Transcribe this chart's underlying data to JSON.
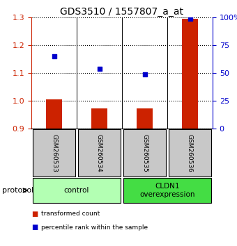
{
  "title": "GDS3510 / 1557807_a_at",
  "samples": [
    "GSM260533",
    "GSM260534",
    "GSM260535",
    "GSM260536"
  ],
  "bar_values": [
    1.005,
    0.972,
    0.972,
    1.295
  ],
  "bar_baseline": 0.9,
  "scatter_percentile": [
    65,
    54,
    49,
    99
  ],
  "left_ylim": [
    0.9,
    1.3
  ],
  "right_ylim": [
    0,
    100
  ],
  "left_yticks": [
    0.9,
    1.0,
    1.1,
    1.2,
    1.3
  ],
  "right_yticks": [
    0,
    25,
    50,
    75,
    100
  ],
  "right_ytick_labels": [
    "0",
    "25",
    "50",
    "75",
    "100%"
  ],
  "bar_color": "#cc2200",
  "scatter_color": "#0000cc",
  "groups": [
    {
      "label": "control",
      "samples": [
        0,
        1
      ],
      "color": "#b3ffb3"
    },
    {
      "label": "CLDN1\noverexpression",
      "samples": [
        2,
        3
      ],
      "color": "#44dd44"
    }
  ],
  "protocol_label": "protocol",
  "legend_bar_label": "transformed count",
  "legend_scatter_label": "percentile rank within the sample",
  "sample_box_color": "#c8c8c8",
  "title_fontsize": 10,
  "tick_fontsize": 8
}
